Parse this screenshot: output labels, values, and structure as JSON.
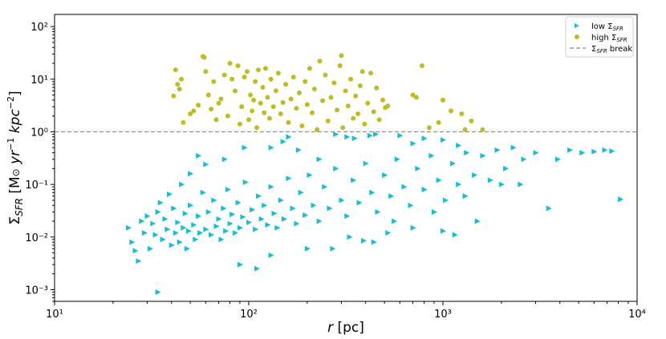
{
  "chart_data": {
    "type": "scatter",
    "title": "",
    "xlabel": "r [pc]",
    "ylabel": "Σ_SFR [M⊙ yr⁻¹ kpc⁻²]",
    "xscale": "log",
    "yscale": "log",
    "xlim": [
      10,
      10000
    ],
    "ylim": [
      0.0006,
      170
    ],
    "x_tick_labels": [
      "10¹",
      "10²",
      "10³",
      "10⁴"
    ],
    "y_tick_labels": [
      "10⁻³",
      "10⁻²",
      "10⁻¹",
      "10⁰",
      "10¹",
      "10²"
    ],
    "legend_position": "top-right",
    "grid": false,
    "break_line": {
      "name": "Σ_SFR break",
      "y": 1.0,
      "style": "dashed",
      "color": "#888888"
    },
    "series": [
      {
        "name": "low Σ_SFR",
        "marker": "triangle-right",
        "color": "#17becf",
        "note_points": "a dense cloud of ~2000 markers; only a representative subset is listed",
        "points": [
          [
            34,
            0.0009
          ],
          [
            24,
            0.015
          ],
          [
            25,
            0.008
          ],
          [
            26,
            0.0055
          ],
          [
            27,
            0.0035
          ],
          [
            28,
            0.02
          ],
          [
            29,
            0.012
          ],
          [
            30,
            0.025
          ],
          [
            31,
            0.006
          ],
          [
            32,
            0.018
          ],
          [
            33,
            0.011
          ],
          [
            34,
            0.03
          ],
          [
            35,
            0.045
          ],
          [
            36,
            0.009
          ],
          [
            37,
            0.022
          ],
          [
            38,
            0.014
          ],
          [
            39,
            0.065
          ],
          [
            40,
            0.007
          ],
          [
            41,
            0.035
          ],
          [
            42,
            0.012
          ],
          [
            43,
            0.019
          ],
          [
            44,
            0.008
          ],
          [
            45,
            0.1
          ],
          [
            46,
            0.015
          ],
          [
            47,
            0.028
          ],
          [
            48,
            0.006
          ],
          [
            49,
            0.013
          ],
          [
            50,
            0.04
          ],
          [
            52,
            0.017
          ],
          [
            53,
            0.009
          ],
          [
            55,
            0.025
          ],
          [
            56,
            0.012
          ],
          [
            58,
            0.07
          ],
          [
            60,
            0.014
          ],
          [
            62,
            0.03
          ],
          [
            64,
            0.011
          ],
          [
            66,
            0.05
          ],
          [
            68,
            0.016
          ],
          [
            70,
            0.022
          ],
          [
            72,
            0.009
          ],
          [
            74,
            0.035
          ],
          [
            76,
            0.013
          ],
          [
            78,
            0.08
          ],
          [
            80,
            0.018
          ],
          [
            82,
            0.027
          ],
          [
            85,
            0.012
          ],
          [
            88,
            0.045
          ],
          [
            90,
            0.015
          ],
          [
            93,
            0.024
          ],
          [
            96,
            0.11
          ],
          [
            100,
            0.019
          ],
          [
            104,
            0.033
          ],
          [
            108,
            0.014
          ],
          [
            112,
            0.06
          ],
          [
            116,
            0.022
          ],
          [
            120,
            0.04
          ],
          [
            125,
            0.017
          ],
          [
            130,
            0.09
          ],
          [
            135,
            0.028
          ],
          [
            140,
            0.015
          ],
          [
            146,
            0.05
          ],
          [
            152,
            0.022
          ],
          [
            160,
            0.13
          ],
          [
            168,
            0.035
          ],
          [
            176,
            0.018
          ],
          [
            185,
            0.07
          ],
          [
            195,
            0.026
          ],
          [
            205,
            0.15
          ],
          [
            215,
            0.04
          ],
          [
            230,
            0.02
          ],
          [
            245,
            0.09
          ],
          [
            260,
            0.035
          ],
          [
            280,
            0.2
          ],
          [
            300,
            0.05
          ],
          [
            320,
            0.025
          ],
          [
            345,
            0.12
          ],
          [
            370,
            0.045
          ],
          [
            400,
            0.25
          ],
          [
            430,
            0.07
          ],
          [
            460,
            0.03
          ],
          [
            500,
            0.15
          ],
          [
            540,
            0.06
          ],
          [
            580,
            0.3
          ],
          [
            630,
            0.09
          ],
          [
            680,
            0.04
          ],
          [
            740,
            0.2
          ],
          [
            800,
            0.08
          ],
          [
            870,
            0.35
          ],
          [
            950,
            0.12
          ],
          [
            1030,
            0.05
          ],
          [
            1120,
            0.25
          ],
          [
            1200,
            0.1
          ],
          [
            1320,
            0.4
          ],
          [
            1450,
            0.15
          ],
          [
            1600,
            0.35
          ],
          [
            1750,
            0.12
          ],
          [
            1900,
            0.45
          ],
          [
            2100,
            0.2
          ],
          [
            2300,
            0.5
          ],
          [
            2600,
            0.3
          ],
          [
            3000,
            0.4
          ],
          [
            3500,
            0.035
          ],
          [
            3900,
            0.3
          ],
          [
            4500,
            0.45
          ],
          [
            5200,
            0.4
          ],
          [
            6000,
            0.42
          ],
          [
            6800,
            0.45
          ],
          [
            7400,
            0.43
          ],
          [
            8200,
            0.052
          ],
          [
            90,
            0.003
          ],
          [
            110,
            0.0025
          ],
          [
            130,
            0.0045
          ],
          [
            200,
            0.006
          ],
          [
            270,
            0.006
          ],
          [
            390,
            0.0085
          ],
          [
            520,
            0.012
          ],
          [
            1000,
            0.013
          ],
          [
            1150,
            0.011
          ],
          [
            560,
            0.02
          ],
          [
            440,
            0.008
          ],
          [
            330,
            0.01
          ],
          [
            700,
            0.015
          ],
          [
            900,
            0.03
          ],
          [
            1500,
            0.02
          ],
          [
            1300,
            0.06
          ],
          [
            2000,
            0.1
          ],
          [
            2500,
            0.1
          ],
          [
            420,
            0.85
          ],
          [
            320,
            0.8
          ],
          [
            700,
            0.6
          ],
          [
            1000,
            0.7
          ],
          [
            1200,
            0.55
          ],
          [
            180,
            0.45
          ],
          [
            230,
            0.3
          ],
          [
            60,
            0.24
          ],
          [
            50,
            0.16
          ],
          [
            55,
            0.35
          ],
          [
            75,
            0.3
          ],
          [
            95,
            0.5
          ],
          [
            130,
            0.5
          ],
          [
            150,
            0.65
          ],
          [
            160,
            0.8
          ],
          [
            280,
            0.9
          ],
          [
            350,
            0.75
          ],
          [
            450,
            0.9
          ],
          [
            600,
            0.85
          ],
          [
            800,
            0.75
          ]
        ]
      },
      {
        "name": "high Σ_SFR",
        "marker": "circle",
        "color": "#bcbd22",
        "points": [
          [
            41,
            4.8
          ],
          [
            42,
            15
          ],
          [
            43,
            8
          ],
          [
            44,
            6.5
          ],
          [
            45,
            10
          ],
          [
            46,
            1.5
          ],
          [
            50,
            2.2
          ],
          [
            52,
            2.5
          ],
          [
            55,
            3.2
          ],
          [
            58,
            27
          ],
          [
            59,
            26
          ],
          [
            60,
            14
          ],
          [
            62,
            5
          ],
          [
            64,
            2.7
          ],
          [
            66,
            9
          ],
          [
            68,
            1.7
          ],
          [
            70,
            3.5
          ],
          [
            72,
            4.2
          ],
          [
            75,
            12
          ],
          [
            78,
            2
          ],
          [
            80,
            20
          ],
          [
            82,
            10
          ],
          [
            85,
            6
          ],
          [
            88,
            18
          ],
          [
            90,
            1.4
          ],
          [
            92,
            3
          ],
          [
            95,
            11
          ],
          [
            98,
            14
          ],
          [
            100,
            1.7
          ],
          [
            102,
            5
          ],
          [
            104,
            2.5
          ],
          [
            106,
            4
          ],
          [
            108,
            9
          ],
          [
            110,
            1.2
          ],
          [
            112,
            15
          ],
          [
            115,
            3.5
          ],
          [
            118,
            7
          ],
          [
            120,
            2.3
          ],
          [
            122,
            16
          ],
          [
            125,
            4.5
          ],
          [
            128,
            1.8
          ],
          [
            130,
            10
          ],
          [
            134,
            3
          ],
          [
            138,
            6
          ],
          [
            142,
            13
          ],
          [
            146,
            2.2
          ],
          [
            150,
            3.6
          ],
          [
            155,
            8
          ],
          [
            160,
            1.5
          ],
          [
            165,
            4.2
          ],
          [
            170,
            11
          ],
          [
            176,
            2.8
          ],
          [
            182,
            5.5
          ],
          [
            188,
            1.3
          ],
          [
            195,
            9
          ],
          [
            200,
            3.3
          ],
          [
            206,
            16
          ],
          [
            212,
            2.3
          ],
          [
            218,
            6.5
          ],
          [
            225,
            1.1
          ],
          [
            232,
            22
          ],
          [
            240,
            3.9
          ],
          [
            248,
            12
          ],
          [
            256,
            1.6
          ],
          [
            265,
            4.5
          ],
          [
            275,
            8.5
          ],
          [
            285,
            2.6
          ],
          [
            295,
            18
          ],
          [
            300,
            28
          ],
          [
            305,
            1.2
          ],
          [
            315,
            6
          ],
          [
            325,
            3.1
          ],
          [
            335,
            10
          ],
          [
            345,
            1.8
          ],
          [
            355,
            4.8
          ],
          [
            365,
            2.2
          ],
          [
            375,
            7.5
          ],
          [
            385,
            14
          ],
          [
            395,
            1.4
          ],
          [
            410,
            3.5
          ],
          [
            425,
            13
          ],
          [
            440,
            2.4
          ],
          [
            455,
            6.8
          ],
          [
            470,
            1.7
          ],
          [
            490,
            4
          ],
          [
            505,
            2.9
          ],
          [
            520,
            3.1
          ],
          [
            700,
            5
          ],
          [
            730,
            4.5
          ],
          [
            780,
            18
          ],
          [
            850,
            1.2
          ],
          [
            950,
            1.5
          ],
          [
            1000,
            4
          ],
          [
            1100,
            2.5
          ],
          [
            1250,
            2.2
          ],
          [
            1300,
            1.1
          ],
          [
            1400,
            1.6
          ],
          [
            1600,
            1.1
          ]
        ]
      }
    ]
  }
}
